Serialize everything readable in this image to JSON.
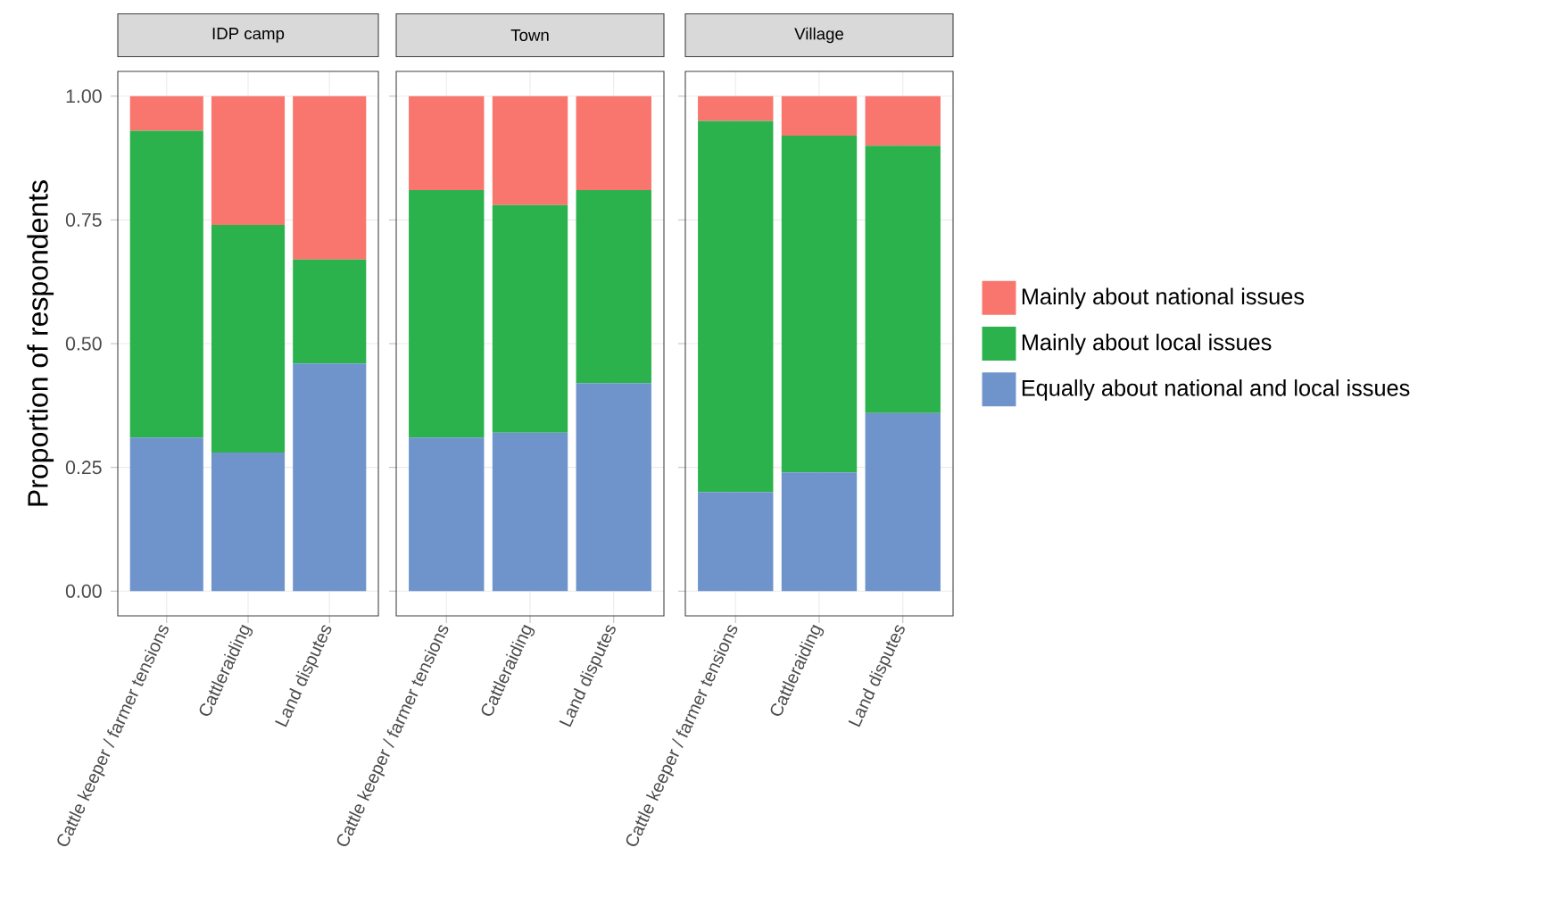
{
  "chart_data": [
    {
      "type": "bar",
      "stacked": true,
      "title": "IDP camp",
      "ylabel": "Proportion of respondents",
      "categories": [
        "Cattle keeper / farmer tensions",
        "Cattleraiding",
        "Land disputes"
      ],
      "ylim": [
        -0.05,
        1.05
      ],
      "yticks": [
        {
          "value": 0,
          "label": "0.00"
        },
        {
          "value": 0.25,
          "label": "0.25"
        },
        {
          "value": 0.5,
          "label": "0.50"
        },
        {
          "value": 0.75,
          "label": "0.75"
        },
        {
          "value": 1,
          "label": "1.00"
        }
      ],
      "grid": true,
      "series": [
        {
          "color": "#6f94cc",
          "values": [
            0.31,
            0.28,
            0.46
          ]
        },
        {
          "color": "#2bb24c",
          "values": [
            0.62,
            0.46,
            0.21
          ]
        },
        {
          "color": "#f8766d",
          "values": [
            0.07,
            0.26,
            0.33
          ]
        }
      ]
    },
    {
      "type": "bar",
      "stacked": true,
      "title": "Town",
      "categories": [
        "Cattle keeper / farmer tensions",
        "Cattleraiding",
        "Land disputes"
      ],
      "ylim": [
        -0.05,
        1.05
      ],
      "yticks": [
        {
          "value": 0,
          "label": null
        },
        {
          "value": 0.25,
          "label": null
        },
        {
          "value": 0.5,
          "label": null
        },
        {
          "value": 0.75,
          "label": null
        },
        {
          "value": 1,
          "label": null
        }
      ],
      "grid": true,
      "tick_labels": "x",
      "series": [
        {
          "color": "#6f94cc",
          "values": [
            0.31,
            0.32,
            0.42
          ]
        },
        {
          "color": "#2bb24c",
          "values": [
            0.5,
            0.46,
            0.39
          ]
        },
        {
          "color": "#f8766d",
          "values": [
            0.19,
            0.22,
            0.19
          ]
        }
      ]
    },
    {
      "type": "bar",
      "stacked": true,
      "title": "Village",
      "categories": [
        "Cattle keeper / farmer tensions",
        "Cattleraiding",
        "Land disputes"
      ],
      "ylim": [
        -0.05,
        1.05
      ],
      "yticks": [
        {
          "value": 0,
          "label": null
        },
        {
          "value": 0.25,
          "label": null
        },
        {
          "value": 0.5,
          "label": null
        },
        {
          "value": 0.75,
          "label": null
        },
        {
          "value": 1,
          "label": null
        }
      ],
      "grid": true,
      "tick_labels": "x",
      "legend": "right",
      "series": [
        {
          "name": "Equally about national and local issues",
          "color": "#6f94cc",
          "values": [
            0.2,
            0.24,
            0.36
          ]
        },
        {
          "name": "Mainly about local issues",
          "color": "#2bb24c",
          "values": [
            0.75,
            0.68,
            0.54
          ]
        },
        {
          "name": "Mainly about national issues",
          "color": "#f8766d",
          "values": [
            0.05,
            0.08,
            0.1
          ]
        }
      ]
    }
  ]
}
